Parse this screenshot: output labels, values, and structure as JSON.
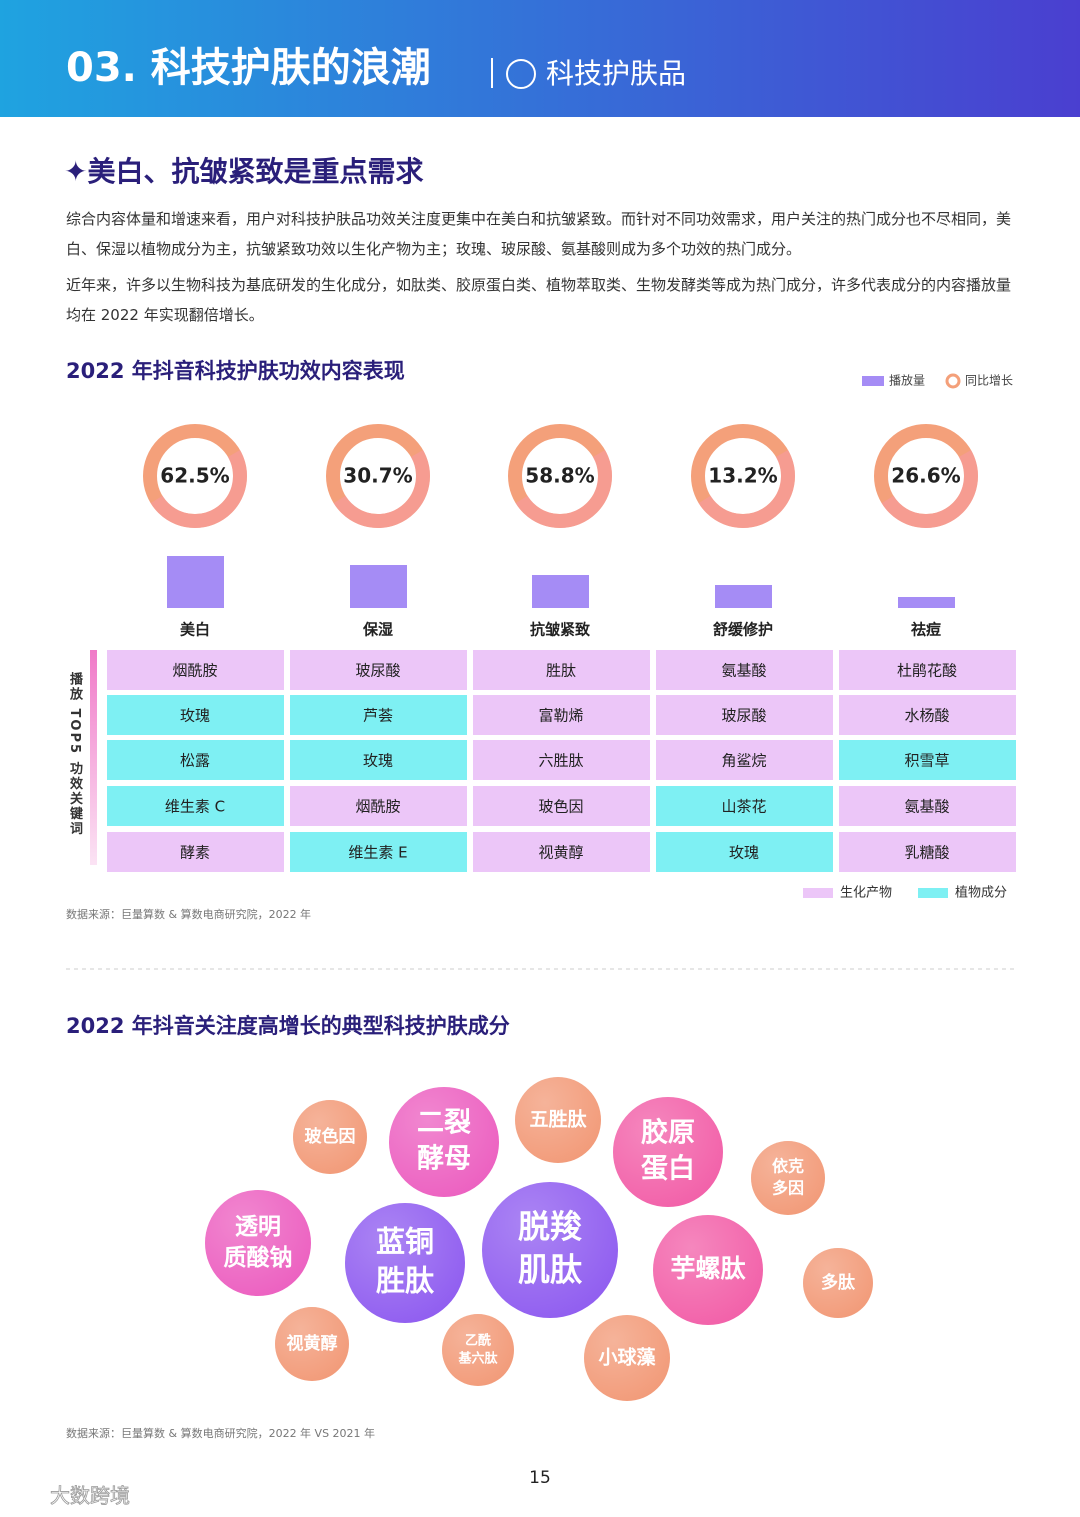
{
  "header": {
    "title": "03. 科技护肤的浪潮",
    "subtitle": "科技护肤品"
  },
  "section_title": "✦美白、抗皱紧致是重点需求",
  "paragraphs": [
    "综合内容体量和增速来看，用户对科技护肤品功效关注度更集中在美白和抗皱紧致。而针对不同功效需求，用户关注的热门成分也不尽相同，美白、保湿以植物成分为主，抗皱紧致功效以生化产物为主；玫瑰、玻尿酸、氨基酸则成为多个功效的热门成分。",
    "近年来，许多以生物科技为基底研发的生化成分，如肽类、胶原蛋白类、植物萃取类、生物发酵类等成为热门成分，许多代表成分的内容播放量均在 2022 年实现翻倍增长。"
  ],
  "chart_data": {
    "type": "bar",
    "title": "2022 年抖音科技护肤功效内容表现",
    "categories": [
      "美白",
      "保湿",
      "抗皱紧致",
      "舒缓修护",
      "祛痘"
    ],
    "ylim": [
      0,
      60
    ],
    "series": [
      {
        "name": "播放量",
        "color": "#a58cf5",
        "values": [
          52,
          43,
          33,
          23,
          11
        ]
      },
      {
        "name": "同比增长",
        "color": "#f4a07a",
        "values": [
          62.5,
          30.7,
          58.8,
          13.2,
          26.6
        ],
        "value_labels": [
          "62.5%",
          "30.7%",
          "58.8%",
          "13.2%",
          "26.6%"
        ]
      }
    ]
  },
  "table": {
    "row_header": "播放 TOP5 功效关键词",
    "legend": [
      {
        "name": "生化产物",
        "color": "#ecc6f8"
      },
      {
        "name": "植物成分",
        "color": "#7ef0f3"
      }
    ],
    "rows": [
      [
        {
          "label": "烟酰胺",
          "color": "#ecc6f8"
        },
        {
          "label": "玻尿酸",
          "color": "#ecc6f8"
        },
        {
          "label": "胜肽",
          "color": "#ecc6f8"
        },
        {
          "label": "氨基酸",
          "color": "#ecc6f8"
        },
        {
          "label": "杜鹃花酸",
          "color": "#ecc6f8"
        }
      ],
      [
        {
          "label": "玫瑰",
          "color": "#7ef0f3"
        },
        {
          "label": "芦荟",
          "color": "#7ef0f3"
        },
        {
          "label": "富勒烯",
          "color": "#ecc6f8"
        },
        {
          "label": "玻尿酸",
          "color": "#ecc6f8"
        },
        {
          "label": "水杨酸",
          "color": "#ecc6f8"
        }
      ],
      [
        {
          "label": "松露",
          "color": "#7ef0f3"
        },
        {
          "label": "玫瑰",
          "color": "#7ef0f3"
        },
        {
          "label": "六胜肽",
          "color": "#ecc6f8"
        },
        {
          "label": "角鲨烷",
          "color": "#ecc6f8"
        },
        {
          "label": "积雪草",
          "color": "#7ef0f3"
        }
      ],
      [
        {
          "label": "维生素 C",
          "color": "#7ef0f3"
        },
        {
          "label": "烟酰胺",
          "color": "#ecc6f8"
        },
        {
          "label": "玻色因",
          "color": "#ecc6f8"
        },
        {
          "label": "山茶花",
          "color": "#7ef0f3"
        },
        {
          "label": "氨基酸",
          "color": "#ecc6f8"
        }
      ],
      [
        {
          "label": "酵素",
          "color": "#ecc6f8"
        },
        {
          "label": "维生素 E",
          "color": "#7ef0f3"
        },
        {
          "label": "视黄醇",
          "color": "#ecc6f8"
        },
        {
          "label": "玫瑰",
          "color": "#7ef0f3"
        },
        {
          "label": "乳糖酸",
          "color": "#ecc6f8"
        }
      ]
    ]
  },
  "source_1": "数据来源：巨量算数 & 算数电商研究院，2022 年",
  "bubbles": {
    "title": "2022 年抖音关注度高增长的典型科技护肤成分",
    "items": [
      {
        "lines": [
          "玻色因"
        ],
        "color": "#f29a78"
      },
      {
        "lines": [
          "二裂",
          "酵母"
        ],
        "color": "#ec5fc0"
      },
      {
        "lines": [
          "五胜肽"
        ],
        "color": "#f29a78"
      },
      {
        "lines": [
          "胶原",
          "蛋白"
        ],
        "color": "#f25fa8"
      },
      {
        "lines": [
          "依克",
          "多因"
        ],
        "color": "#f29a78"
      },
      {
        "lines": [
          "透明",
          "质酸钠"
        ],
        "color": "#ec5fc0"
      },
      {
        "lines": [
          "蓝铜",
          "胜肽"
        ],
        "color": "#8f5cf0"
      },
      {
        "lines": [
          "脱羧",
          "肌肽"
        ],
        "color": "#8f5cf0"
      },
      {
        "lines": [
          "芋螺肽"
        ],
        "color": "#f25fa8"
      },
      {
        "lines": [
          "多肽"
        ],
        "color": "#f29a78"
      },
      {
        "lines": [
          "视黄醇"
        ],
        "color": "#f29a78"
      },
      {
        "lines": [
          "乙酰",
          "基六肽"
        ],
        "color": "#f29a78"
      },
      {
        "lines": [
          "小球藻"
        ],
        "color": "#f29a78"
      }
    ]
  },
  "source_2": "数据来源：巨量算数 & 算数电商研究院，2022 年 VS 2021 年",
  "page_number": "15",
  "watermark": "大数跨境"
}
